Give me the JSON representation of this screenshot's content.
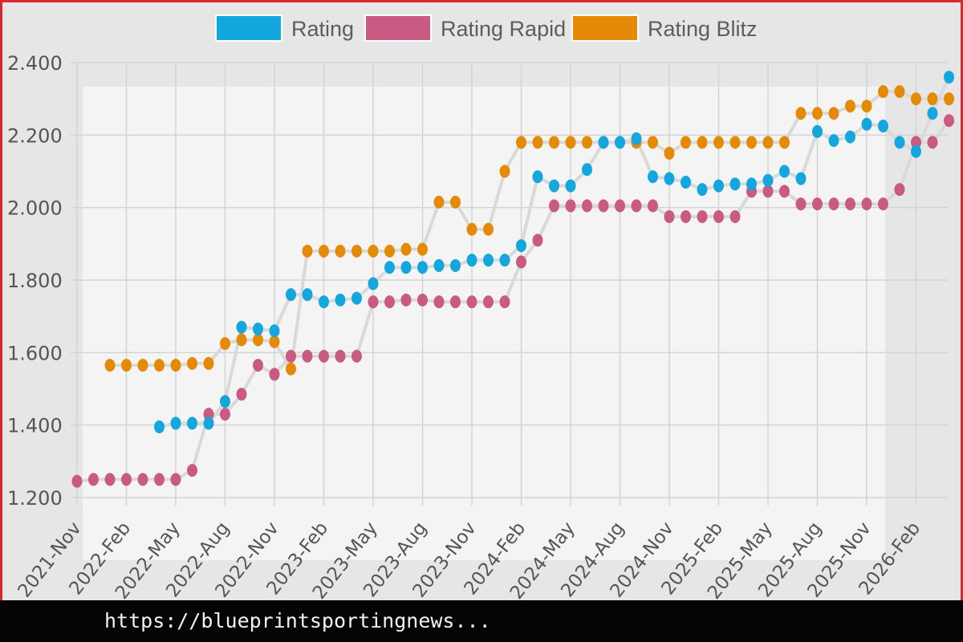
{
  "colors": {
    "rating": "#13a7de",
    "rapid": "#c85a84",
    "blitz": "#e58a07",
    "connector": "#d9d9d9",
    "grid": "#d3d3d3"
  },
  "url_text": "https://blueprintsportingnews...",
  "chart_data": {
    "type": "scatter",
    "legend": [
      "Rating",
      "Rating Rapid",
      "Rating Blitz"
    ],
    "legend_position": "top-center",
    "grid": true,
    "yticks": [
      "1.200",
      "1.400",
      "1.600",
      "1.800",
      "2.000",
      "2.200",
      "2.400"
    ],
    "ylim": [
      1180,
      2420
    ],
    "xticks": [
      "2021-Nov",
      "2022-Feb",
      "2022-May",
      "2022-Aug",
      "2022-Nov",
      "2023-Feb",
      "2023-May",
      "2023-Aug",
      "2023-Nov",
      "2024-Feb",
      "2024-May",
      "2024-Aug",
      "2024-Nov",
      "2025-Feb",
      "2025-May",
      "2025-Aug",
      "2025-Nov",
      "2026-Feb"
    ],
    "x": [
      "2021-Nov",
      "2021-Dec",
      "2022-Jan",
      "2022-Feb",
      "2022-Mar",
      "2022-Apr",
      "2022-May",
      "2022-Jun",
      "2022-Jul",
      "2022-Aug",
      "2022-Sep",
      "2022-Oct",
      "2022-Nov",
      "2022-Dec",
      "2023-Jan",
      "2023-Feb",
      "2023-Mar",
      "2023-Apr",
      "2023-May",
      "2023-Jun",
      "2023-Jul",
      "2023-Aug",
      "2023-Sep",
      "2023-Oct",
      "2023-Nov",
      "2023-Dec",
      "2024-Jan",
      "2024-Feb",
      "2024-Mar",
      "2024-Apr",
      "2024-May",
      "2024-Jun",
      "2024-Jul",
      "2024-Aug",
      "2024-Sep",
      "2024-Oct",
      "2024-Nov",
      "2024-Dec",
      "2025-Jan",
      "2025-Feb",
      "2025-Mar",
      "2025-Apr",
      "2025-May",
      "2025-Jun",
      "2025-Jul",
      "2025-Aug",
      "2025-Sep",
      "2025-Oct",
      "2025-Nov",
      "2025-Dec",
      "2026-Jan",
      "2026-Feb",
      "2026-Mar",
      "2026-Apr"
    ],
    "series": [
      {
        "name": "Rating",
        "values": [
          null,
          null,
          null,
          null,
          null,
          1395,
          1405,
          1405,
          1405,
          1465,
          1670,
          1665,
          1660,
          1760,
          1760,
          1740,
          1745,
          1750,
          1790,
          1835,
          1835,
          1835,
          1840,
          1840,
          1855,
          1855,
          1855,
          1895,
          2085,
          2060,
          2060,
          2105,
          2180,
          2180,
          2190,
          2085,
          2080,
          2070,
          2050,
          2060,
          2065,
          2065,
          2075,
          2100,
          2080,
          2210,
          2185,
          2195,
          2230,
          2225,
          2180,
          2155,
          2260,
          2360
        ]
      },
      {
        "name": "Rating Rapid",
        "values": [
          1245,
          1250,
          1250,
          1250,
          1250,
          1250,
          1250,
          1275,
          1430,
          1430,
          1485,
          1565,
          1540,
          1590,
          1590,
          1590,
          1590,
          1590,
          1740,
          1740,
          1745,
          1745,
          1740,
          1740,
          1740,
          1740,
          1740,
          1850,
          1910,
          2005,
          2005,
          2005,
          2005,
          2005,
          2005,
          2005,
          1975,
          1975,
          1975,
          1975,
          1975,
          2045,
          2045,
          2045,
          2010,
          2010,
          2010,
          2010,
          2010,
          2010,
          2050,
          2180,
          2180,
          2240
        ]
      },
      {
        "name": "Rating Blitz",
        "values": [
          null,
          null,
          1565,
          1565,
          1565,
          1565,
          1565,
          1570,
          1570,
          1625,
          1635,
          1635,
          1630,
          1555,
          1880,
          1880,
          1880,
          1880,
          1880,
          1880,
          1885,
          1885,
          2015,
          2015,
          1940,
          1940,
          2100,
          2180,
          2180,
          2180,
          2180,
          2180,
          2180,
          2180,
          2180,
          2180,
          2150,
          2180,
          2180,
          2180,
          2180,
          2180,
          2180,
          2180,
          2260,
          2260,
          2260,
          2280,
          2280,
          2320,
          2320,
          2300,
          2300,
          2300
        ]
      }
    ]
  }
}
